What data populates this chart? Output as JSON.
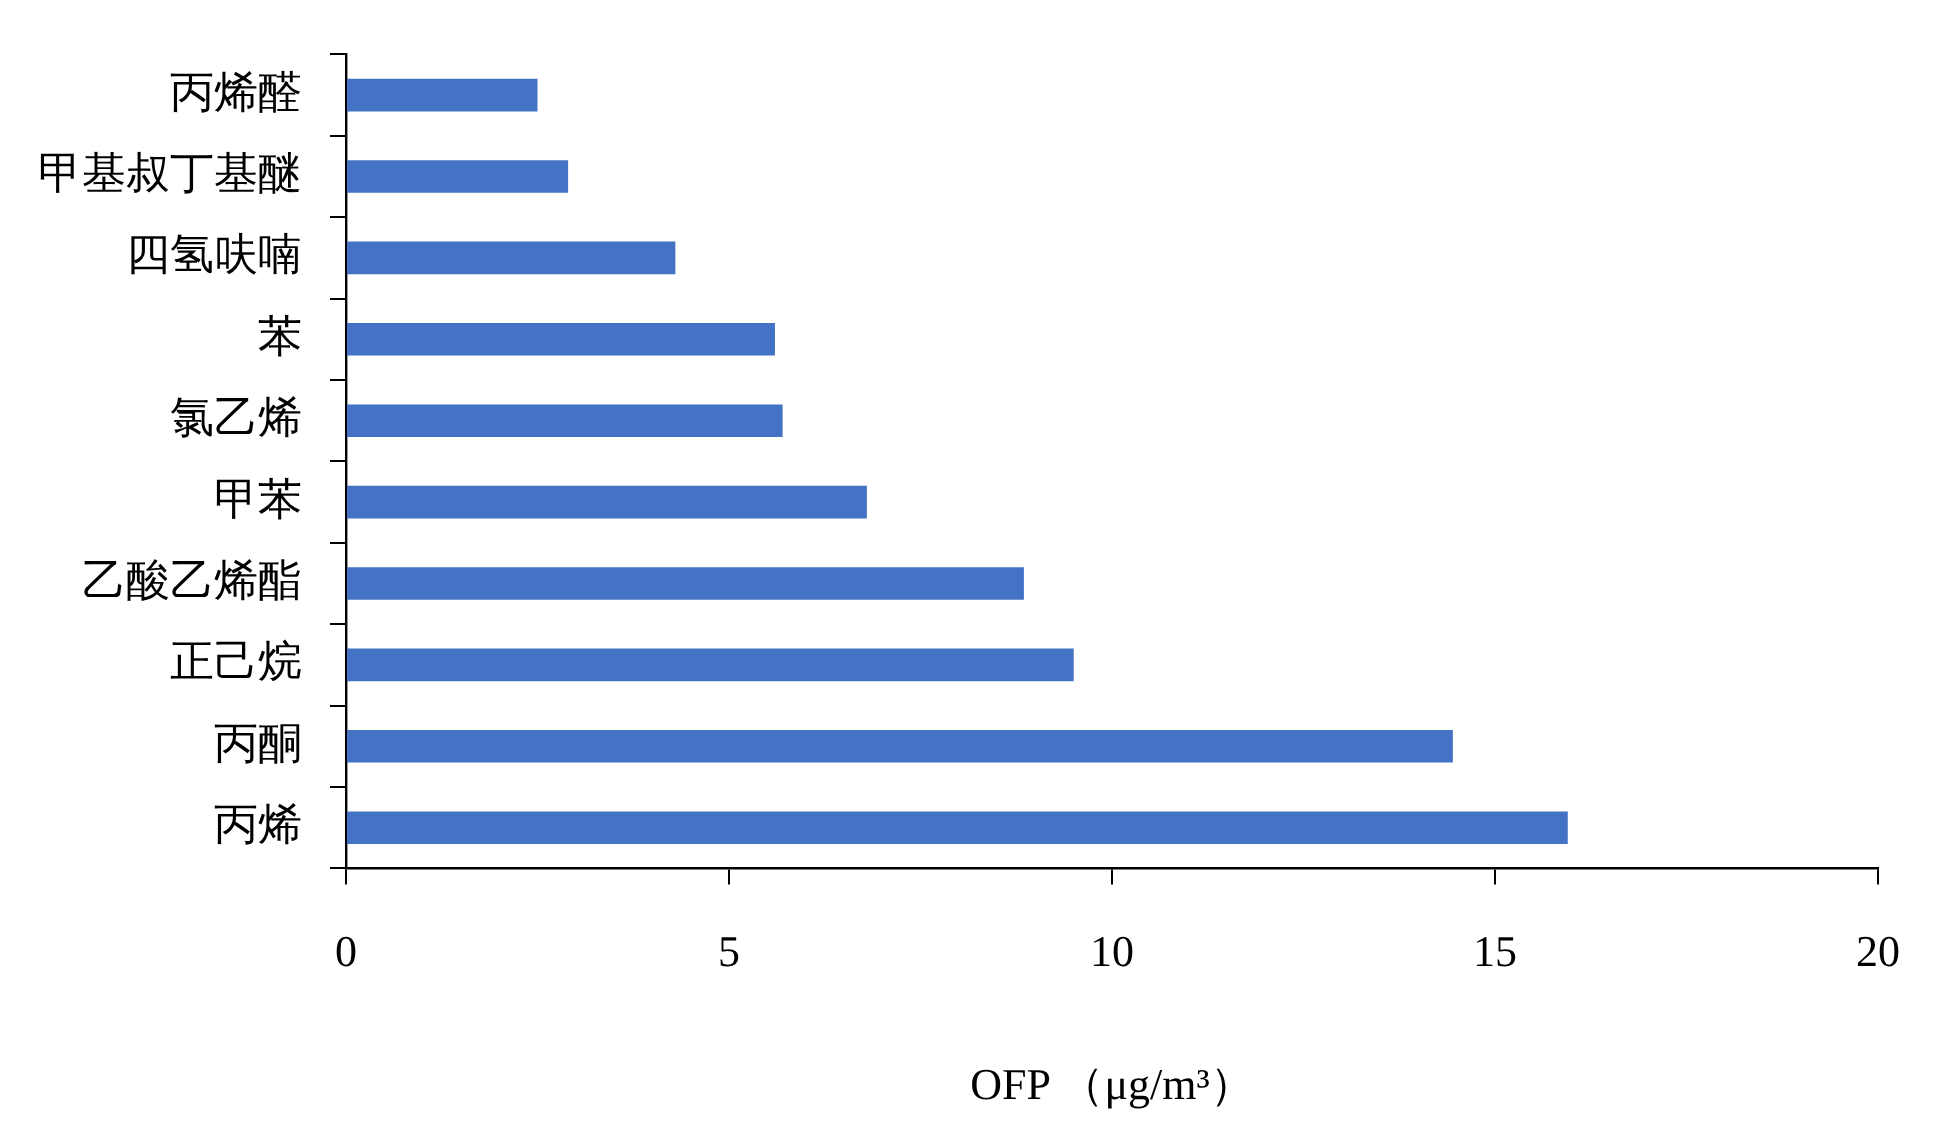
{
  "chart_data": {
    "type": "bar",
    "orientation": "horizontal",
    "xlabel": "OFP （μg/m³）",
    "categories": [
      "丙烯醛",
      "甲基叔丁基醚",
      "四氢呋喃",
      "苯",
      "氯乙烯",
      "甲苯",
      "乙酸乙烯酯",
      "正己烷",
      "丙酮",
      "丙烯"
    ],
    "values": [
      2.5,
      2.9,
      4.3,
      5.6,
      5.7,
      6.8,
      8.85,
      9.5,
      14.45,
      15.95
    ],
    "color": "#4472c4",
    "xlim": [
      0,
      20
    ],
    "xticks": [
      0,
      5,
      10,
      15,
      20
    ],
    "grid": false,
    "legend": false
  }
}
